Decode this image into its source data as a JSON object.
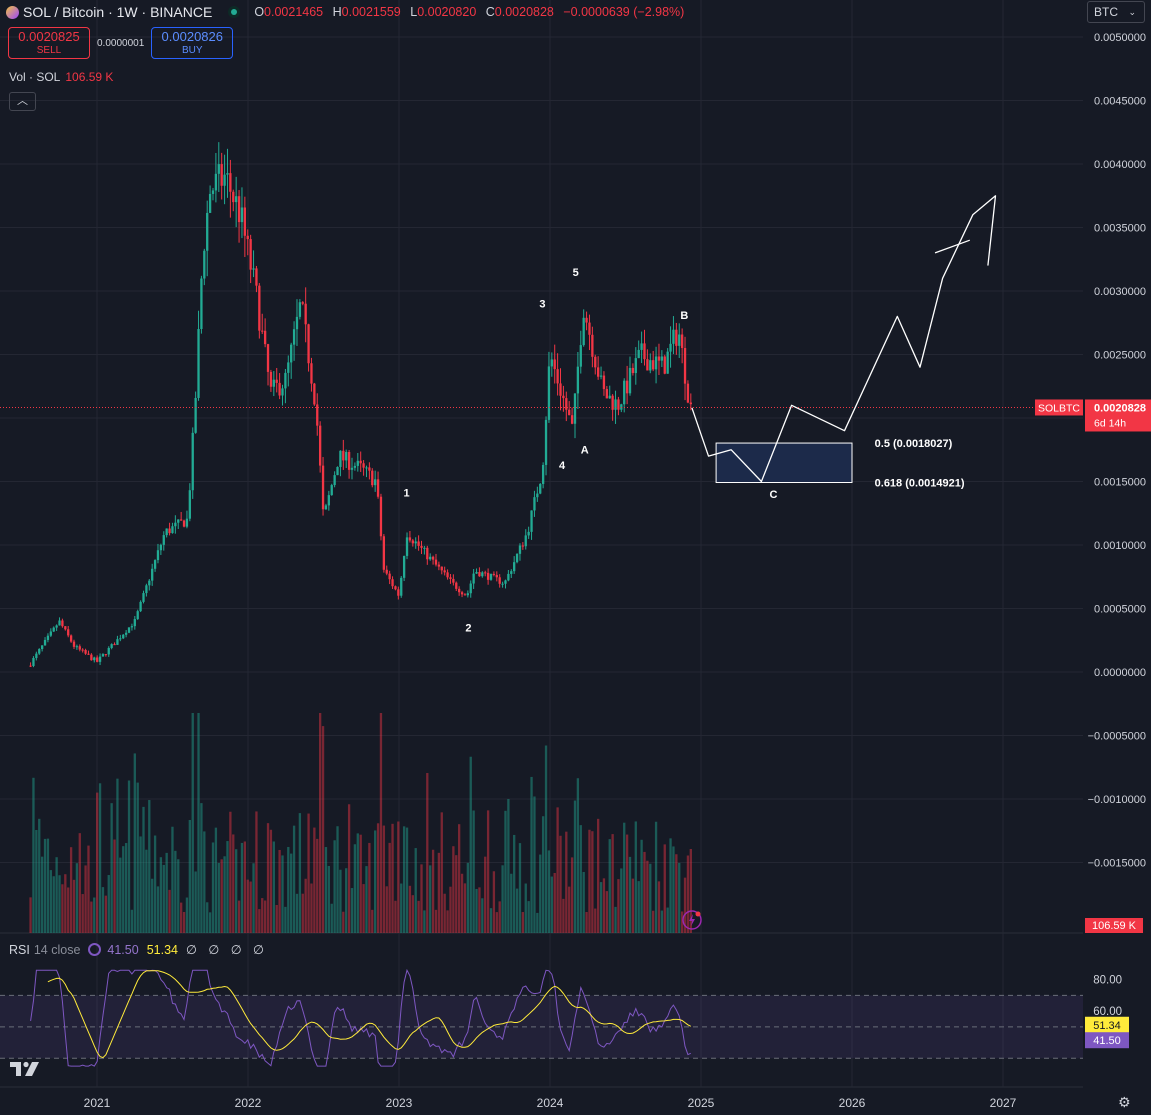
{
  "header": {
    "title": "SOL / Bitcoin · 1W · BINANCE",
    "ohlc": [
      {
        "k": "O",
        "v": "0.0021465"
      },
      {
        "k": "H",
        "v": "0.0021559"
      },
      {
        "k": "L",
        "v": "0.0020820"
      },
      {
        "k": "C",
        "v": "0.0020828"
      }
    ],
    "change": "−0.0000639 (−2.98%)"
  },
  "sell": {
    "price": "0.0020825",
    "label": "SELL"
  },
  "buy": {
    "price": "0.0020826",
    "label": "BUY"
  },
  "spread": "0.0000001",
  "volume": {
    "label": "Vol · SOL",
    "value": "106.59 K"
  },
  "currency": "BTC",
  "price_label": {
    "symbol": "SOLBTC",
    "price": "0.0020828",
    "countdown": "6d 14h"
  },
  "rsi": {
    "label": "RSI",
    "params": "14 close",
    "rsi_value": "41.50",
    "ma_value": "51.34",
    "nulls": "∅ ∅ ∅ ∅",
    "levels": [
      "80.00",
      "60.00"
    ]
  },
  "annotations": {
    "waves": [
      {
        "t": "1"
      },
      {
        "t": "2"
      },
      {
        "t": "3"
      },
      {
        "t": "4"
      },
      {
        "t": "5"
      },
      {
        "t": "A"
      },
      {
        "t": "B"
      },
      {
        "t": "C"
      }
    ],
    "fib": [
      "0.5 (0.0018027)",
      "0.618 (0.0014921)"
    ]
  },
  "colors": {
    "bg": "#161a25",
    "up": "#22ab94",
    "down": "#f23645",
    "rsi": "#7e57c2",
    "rsi_ma": "#ffeb3b",
    "grid": "#242733"
  },
  "chart_data": [
    {
      "type": "candlestick",
      "title": "SOL / Bitcoin · 1W · BINANCE",
      "ylim": [
        -0.0019,
        0.005
      ],
      "y_ticks": [
        "0.0050000",
        "0.0045000",
        "0.0040000",
        "0.0035000",
        "0.0030000",
        "0.0025000",
        "0.0020000",
        "0.0015000",
        "0.0010000",
        "0.0005000",
        "0.0000000",
        "−0.0005000",
        "−0.0010000",
        "−0.0015000"
      ],
      "x_ticks": [
        "2021",
        "2022",
        "2023",
        "2024",
        "2025",
        "2026",
        "2027"
      ],
      "price_path": [
        [
          2020.55,
          5e-05
        ],
        [
          2020.75,
          0.0004
        ],
        [
          2020.85,
          0.0002
        ],
        [
          2021.0,
          8e-05
        ],
        [
          2021.25,
          0.0004
        ],
        [
          2021.45,
          0.0011
        ],
        [
          2021.6,
          0.0012
        ],
        [
          2021.65,
          0.0021
        ],
        [
          2021.7,
          0.0033
        ],
        [
          2021.75,
          0.0038
        ],
        [
          2021.85,
          0.0039
        ],
        [
          2021.95,
          0.0036
        ],
        [
          2022.05,
          0.003
        ],
        [
          2022.15,
          0.0022
        ],
        [
          2022.25,
          0.0023
        ],
        [
          2022.35,
          0.0029
        ],
        [
          2022.45,
          0.0021
        ],
        [
          2022.5,
          0.0012
        ],
        [
          2022.6,
          0.0017
        ],
        [
          2022.75,
          0.0016
        ],
        [
          2022.85,
          0.0015
        ],
        [
          2022.9,
          0.0008
        ],
        [
          2023.0,
          0.0006
        ],
        [
          2023.05,
          0.0011
        ],
        [
          2023.2,
          0.0009
        ],
        [
          2023.35,
          0.0007
        ],
        [
          2023.45,
          0.0006
        ],
        [
          2023.5,
          0.0008
        ],
        [
          2023.7,
          0.0007
        ],
        [
          2023.85,
          0.0011
        ],
        [
          2023.95,
          0.0016
        ],
        [
          2024.0,
          0.0025
        ],
        [
          2024.1,
          0.0021
        ],
        [
          2024.15,
          0.0019
        ],
        [
          2024.22,
          0.0029
        ],
        [
          2024.35,
          0.0022
        ],
        [
          2024.45,
          0.0021
        ],
        [
          2024.6,
          0.0025
        ],
        [
          2024.75,
          0.0024
        ],
        [
          2024.85,
          0.0027
        ],
        [
          2024.93,
          0.00208
        ]
      ],
      "projection": [
        [
          2024.94,
          0.00208
        ],
        [
          2025.05,
          0.0017
        ],
        [
          2025.2,
          0.00175
        ],
        [
          2025.4,
          0.0015
        ],
        [
          2025.6,
          0.0021
        ],
        [
          2025.95,
          0.0019
        ],
        [
          2026.3,
          0.0028
        ],
        [
          2026.45,
          0.0024
        ],
        [
          2026.6,
          0.0031
        ],
        [
          2026.8,
          0.0036
        ],
        [
          2026.95,
          0.00375
        ],
        [
          2026.9,
          0.0032
        ]
      ],
      "fib_zone": [
        0.0018027,
        0.0014921
      ]
    },
    {
      "type": "line",
      "title": "RSI 14 close",
      "ylim": [
        20,
        90
      ],
      "y_ticks": [
        "80.00",
        "60.00"
      ],
      "series": [
        {
          "name": "RSI",
          "values": [
            41.5
          ]
        },
        {
          "name": "RSI MA",
          "values": [
            51.34
          ]
        }
      ]
    }
  ]
}
